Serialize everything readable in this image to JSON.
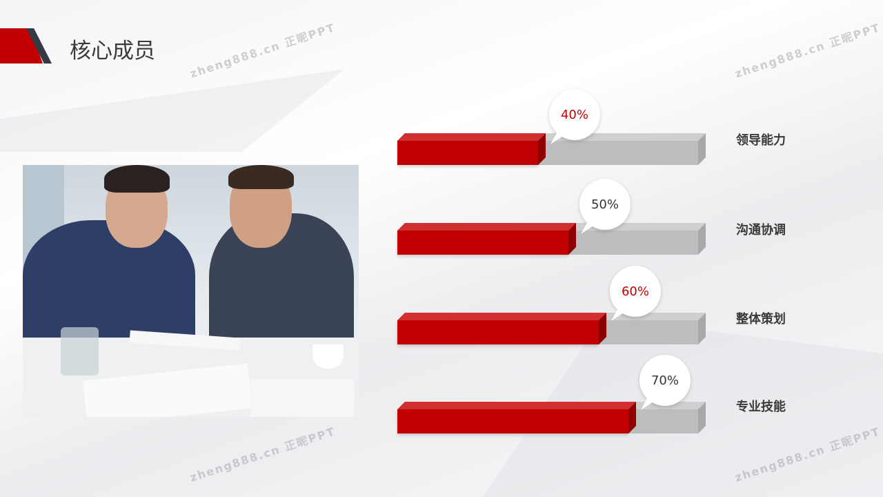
{
  "slide": {
    "title": "核心成员",
    "watermark": "zheng888.cn 正昵PPT"
  },
  "colors": {
    "accent": "#c00000",
    "track": "#bdbdbf",
    "dark": "#333a46"
  },
  "photo": {
    "description_icon": "business-meeting-photo"
  },
  "chart_data": {
    "type": "bar",
    "orientation": "horizontal",
    "categories": [
      "领导能力",
      "沟通协调",
      "整体策划",
      "专业技能"
    ],
    "values": [
      40,
      50,
      60,
      70
    ],
    "value_labels": [
      "40%",
      "50%",
      "60%",
      "70%"
    ],
    "xlim": [
      0,
      100
    ]
  }
}
